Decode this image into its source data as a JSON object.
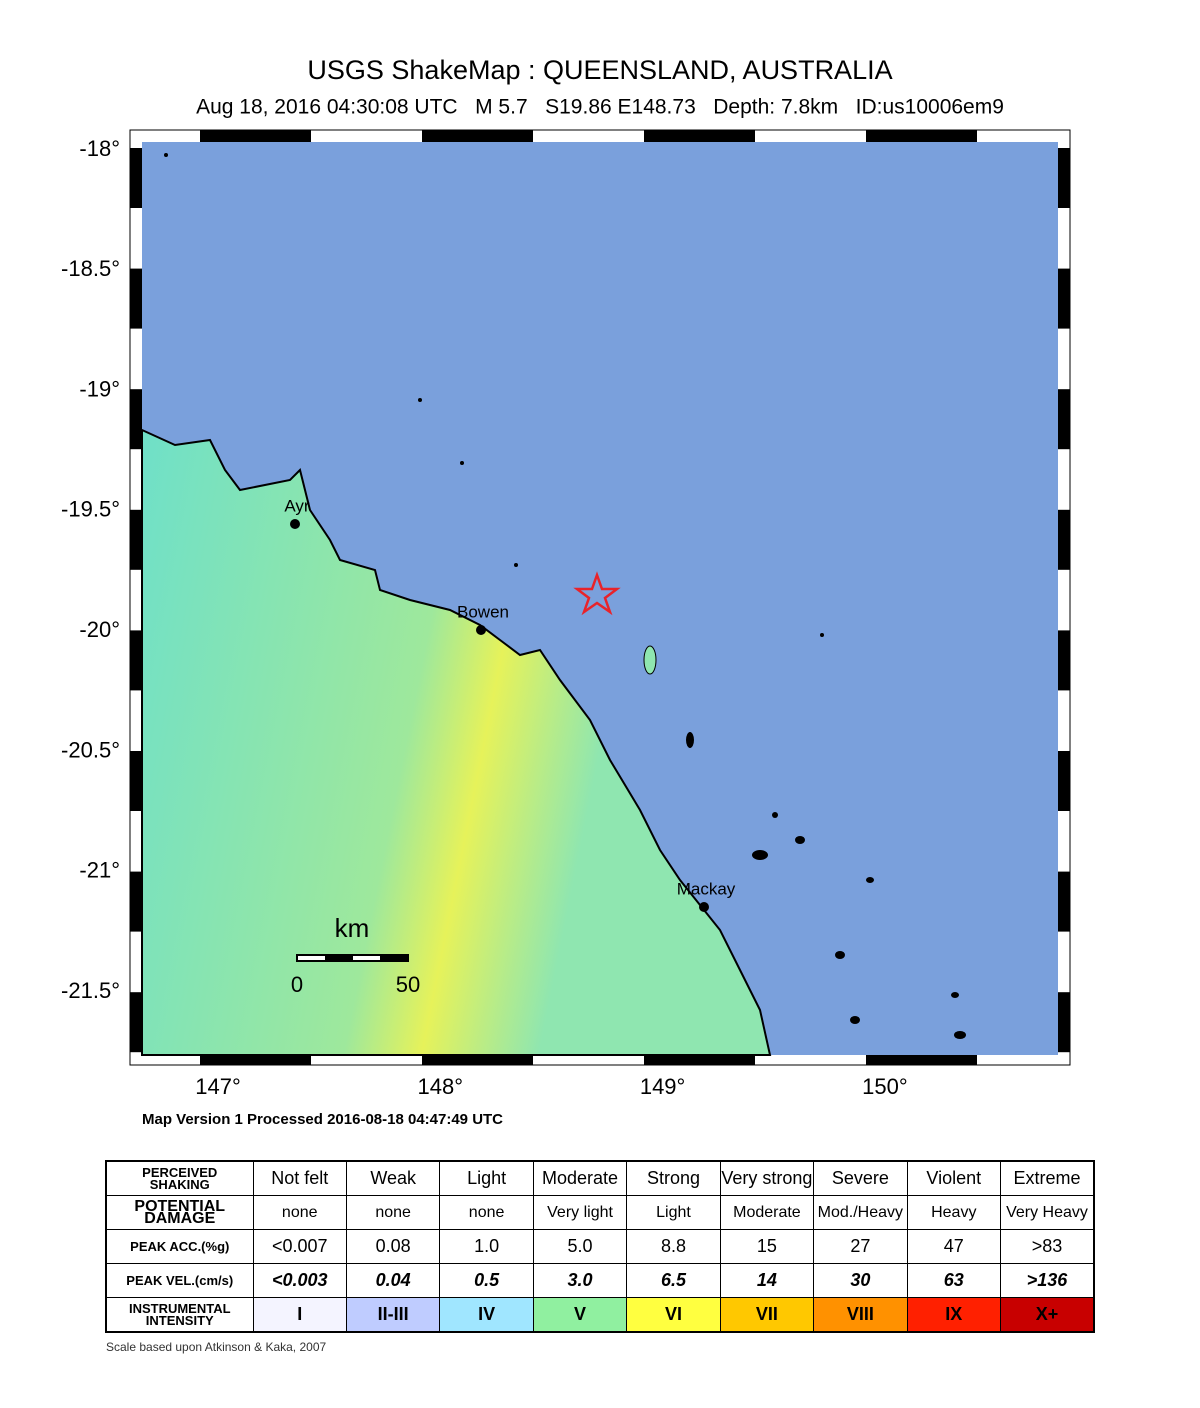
{
  "header": {
    "title": "USGS ShakeMap : QUEENSLAND, AUSTRALIA",
    "subtitle": "Aug 18, 2016 04:30:08 UTC   M 5.7   S19.86 E148.73   Depth: 7.8km   ID:us10006em9"
  },
  "map": {
    "lat_labels": [
      "-18°",
      "-18.5°",
      "-19°",
      "-19.5°",
      "-20°",
      "-20.5°",
      "-21°",
      "-21.5°"
    ],
    "lon_labels": [
      "147°",
      "148°",
      "149°",
      "150°"
    ],
    "cities": [
      "Ayr",
      "Bowen",
      "Mackay"
    ],
    "scale_bar": {
      "unit": "km",
      "start": "0",
      "end": "50"
    }
  },
  "version_note": "Map Version 1 Processed 2016-08-18 04:47:49 UTC",
  "legend": {
    "rows": [
      {
        "label": "PERCEIVED SHAKING",
        "cells": [
          "Not felt",
          "Weak",
          "Light",
          "Moderate",
          "Strong",
          "Very strong",
          "Severe",
          "Violent",
          "Extreme"
        ]
      },
      {
        "label": "POTENTIAL DAMAGE",
        "cells": [
          "none",
          "none",
          "none",
          "Very light",
          "Light",
          "Moderate",
          "Mod./Heavy",
          "Heavy",
          "Very Heavy"
        ]
      },
      {
        "label": "PEAK ACC.(%g)",
        "cells": [
          "<0.007",
          "0.08",
          "1.0",
          "5.0",
          "8.8",
          "15",
          "27",
          "47",
          ">83"
        ]
      },
      {
        "label": "PEAK VEL.(cm/s)",
        "cells": [
          "<0.003",
          "0.04",
          "0.5",
          "3.0",
          "6.5",
          "14",
          "30",
          "63",
          ">136"
        ]
      },
      {
        "label": "INSTRUMENTAL INTENSITY",
        "cells": [
          "I",
          "II-III",
          "IV",
          "V",
          "VI",
          "VII",
          "VIII",
          "IX",
          "X+"
        ]
      }
    ],
    "intensity_colors": [
      "#f4f4ff",
      "#bfccff",
      "#a0e6ff",
      "#90f0a0",
      "#ffff40",
      "#ffc800",
      "#ff9100",
      "#ff2000",
      "#c80000"
    ]
  },
  "footnote": "Scale based upon Atkinson & Kaka, 2007"
}
